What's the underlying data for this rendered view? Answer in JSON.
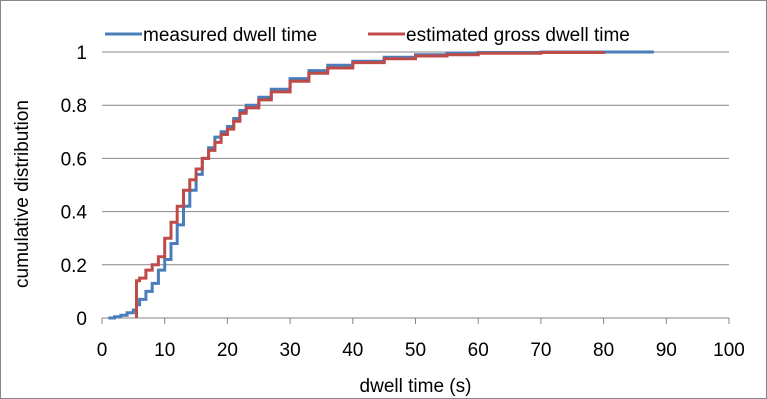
{
  "chart_data": {
    "type": "line",
    "title": "",
    "xlabel": "dwell time (s)",
    "ylabel": "cumulative distribution",
    "xlim": [
      0,
      100
    ],
    "ylim": [
      0,
      1
    ],
    "xticks": [
      "0",
      "10",
      "20",
      "30",
      "40",
      "50",
      "60",
      "70",
      "80",
      "90",
      "100"
    ],
    "yticks": [
      "0",
      "0.2",
      "0.4",
      "0.6",
      "0.8",
      "1"
    ],
    "grid": "horizontal",
    "legend_position": "top",
    "series": [
      {
        "name": "measured dwell time",
        "color": "#4a7ebb",
        "points": [
          [
            1,
            0
          ],
          [
            2,
            0.005
          ],
          [
            3,
            0.01
          ],
          [
            4,
            0.02
          ],
          [
            5,
            0.03
          ],
          [
            5.5,
            0.05
          ],
          [
            6,
            0.07
          ],
          [
            7,
            0.1
          ],
          [
            8,
            0.13
          ],
          [
            9,
            0.18
          ],
          [
            10,
            0.22
          ],
          [
            11,
            0.28
          ],
          [
            12,
            0.35
          ],
          [
            13,
            0.42
          ],
          [
            14,
            0.48
          ],
          [
            15,
            0.54
          ],
          [
            16,
            0.6
          ],
          [
            17,
            0.64
          ],
          [
            18,
            0.68
          ],
          [
            19,
            0.7
          ],
          [
            20,
            0.72
          ],
          [
            21,
            0.75
          ],
          [
            22,
            0.78
          ],
          [
            23,
            0.8
          ],
          [
            25,
            0.83
          ],
          [
            27,
            0.86
          ],
          [
            30,
            0.9
          ],
          [
            33,
            0.93
          ],
          [
            36,
            0.95
          ],
          [
            40,
            0.965
          ],
          [
            45,
            0.98
          ],
          [
            50,
            0.99
          ],
          [
            55,
            0.995
          ],
          [
            60,
            0.998
          ],
          [
            70,
            1
          ],
          [
            80,
            1
          ],
          [
            88,
            1
          ]
        ]
      },
      {
        "name": "estimated gross dwell time",
        "color": "#be4b48",
        "points": [
          [
            5.5,
            0
          ],
          [
            5.5,
            0.14
          ],
          [
            6,
            0.15
          ],
          [
            7,
            0.18
          ],
          [
            8,
            0.2
          ],
          [
            9,
            0.23
          ],
          [
            10,
            0.3
          ],
          [
            11,
            0.36
          ],
          [
            12,
            0.42
          ],
          [
            13,
            0.48
          ],
          [
            14,
            0.52
          ],
          [
            15,
            0.56
          ],
          [
            16,
            0.6
          ],
          [
            17,
            0.63
          ],
          [
            18,
            0.66
          ],
          [
            19,
            0.69
          ],
          [
            20,
            0.71
          ],
          [
            21,
            0.74
          ],
          [
            22,
            0.77
          ],
          [
            23,
            0.79
          ],
          [
            25,
            0.82
          ],
          [
            27,
            0.85
          ],
          [
            30,
            0.89
          ],
          [
            33,
            0.92
          ],
          [
            36,
            0.94
          ],
          [
            40,
            0.96
          ],
          [
            45,
            0.975
          ],
          [
            50,
            0.985
          ],
          [
            55,
            0.99
          ],
          [
            60,
            0.995
          ],
          [
            70,
            0.998
          ],
          [
            80,
            1
          ]
        ]
      }
    ]
  }
}
